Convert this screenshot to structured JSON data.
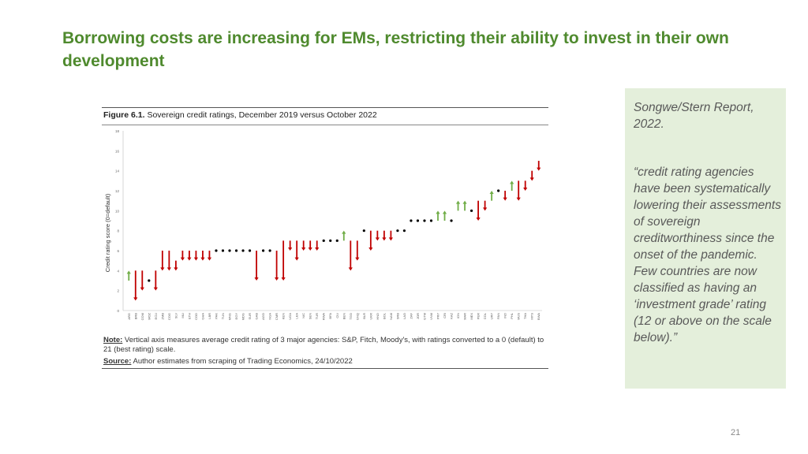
{
  "slide": {
    "title": "Borrowing costs are increasing for EMs, restricting their ability to invest in their own development",
    "page_number": "21"
  },
  "figure": {
    "label": "Figure 6.1.",
    "title": "Sovereign credit ratings, December 2019 versus October 2022",
    "note_label": "Note:",
    "note_text": "Vertical axis measures average credit rating of 3 major agencies: S&P, Fitch, Moody's, with ratings converted to a 0 (default) to 21 (best rating) scale.",
    "source_label": "Source:",
    "source_text": "Author estimates from scraping of Trading Economics, 24/10/2022"
  },
  "sidebar": {
    "source": "Songwe/Stern Report, 2022.",
    "quote": "“credit rating agencies have been systematically lowering their assessments of sovereign creditworthiness since the onset of the pandemic. Few countries are now classified as having an ‘investment grade’ rating (12 or above on the scale below).”"
  },
  "chart_data": {
    "type": "arrow-range",
    "title": "Sovereign credit ratings, December 2019 versus October 2022",
    "ylabel": "Credit rating score (0=default)",
    "xlabel": "",
    "ylim": [
      0,
      18
    ],
    "yticks": [
      0,
      2,
      4,
      6,
      8,
      10,
      12,
      14,
      16,
      18
    ],
    "grid": false,
    "legend": "none",
    "colors": {
      "down": "#c00000",
      "up": "#70ad47",
      "same": "#000000"
    },
    "categories": [
      "ARG",
      "BRB",
      "COM",
      "MOZ",
      "ECU",
      "ZMB",
      "COG",
      "SLV",
      "MLI",
      "ETH",
      "COD",
      "GHA",
      "LBR",
      "PAK",
      "TUN",
      "MNG",
      "EGY",
      "MDG",
      "SUR",
      "GAB",
      "AGO",
      "NGA",
      "CMR",
      "KEN",
      "UGA",
      "LKA",
      "NIC",
      "SEN",
      "TUR",
      "RWA",
      "BFA",
      "CIV",
      "BEN",
      "TGO",
      "GNQ",
      "BLR",
      "UKR",
      "HND",
      "BOL",
      "NAM",
      "SRB",
      "LAO",
      "ZAF",
      "JOR",
      "GTM",
      "VNM",
      "PRY",
      "CRI",
      "KAZ",
      "IDN",
      "MAR",
      "MEX",
      "PER",
      "COL",
      "URY",
      "PAN",
      "IND",
      "PHL",
      "MUS",
      "THA",
      "MYS",
      "BWA"
    ],
    "series": [
      {
        "name": "December 2019",
        "values": [
          3,
          4,
          4,
          3,
          4,
          6,
          6,
          5,
          6,
          6,
          6,
          6,
          6,
          6,
          6,
          6,
          6,
          6,
          6,
          6,
          6,
          6,
          6,
          7,
          7,
          7,
          7,
          7,
          7,
          7,
          7,
          7,
          7,
          7,
          7,
          8,
          8,
          8,
          8,
          8,
          8,
          8,
          9,
          9,
          9,
          9,
          9,
          9,
          9,
          10,
          10,
          10,
          11,
          11,
          11,
          12,
          12,
          12,
          13,
          13,
          14,
          15
        ]
      },
      {
        "name": "October 2022",
        "values": [
          4,
          1,
          2,
          3,
          2,
          4,
          4,
          4,
          5,
          5,
          5,
          5,
          5,
          6,
          6,
          6,
          6,
          6,
          6,
          3,
          6,
          6,
          3,
          3,
          6,
          5,
          6,
          6,
          6,
          7,
          7,
          7,
          8,
          4,
          5,
          8,
          6,
          7,
          7,
          7,
          8,
          8,
          9,
          9,
          9,
          9,
          10,
          10,
          9,
          11,
          11,
          10,
          9,
          10,
          12,
          12,
          11,
          13,
          11,
          12,
          13,
          14
        ]
      }
    ]
  }
}
